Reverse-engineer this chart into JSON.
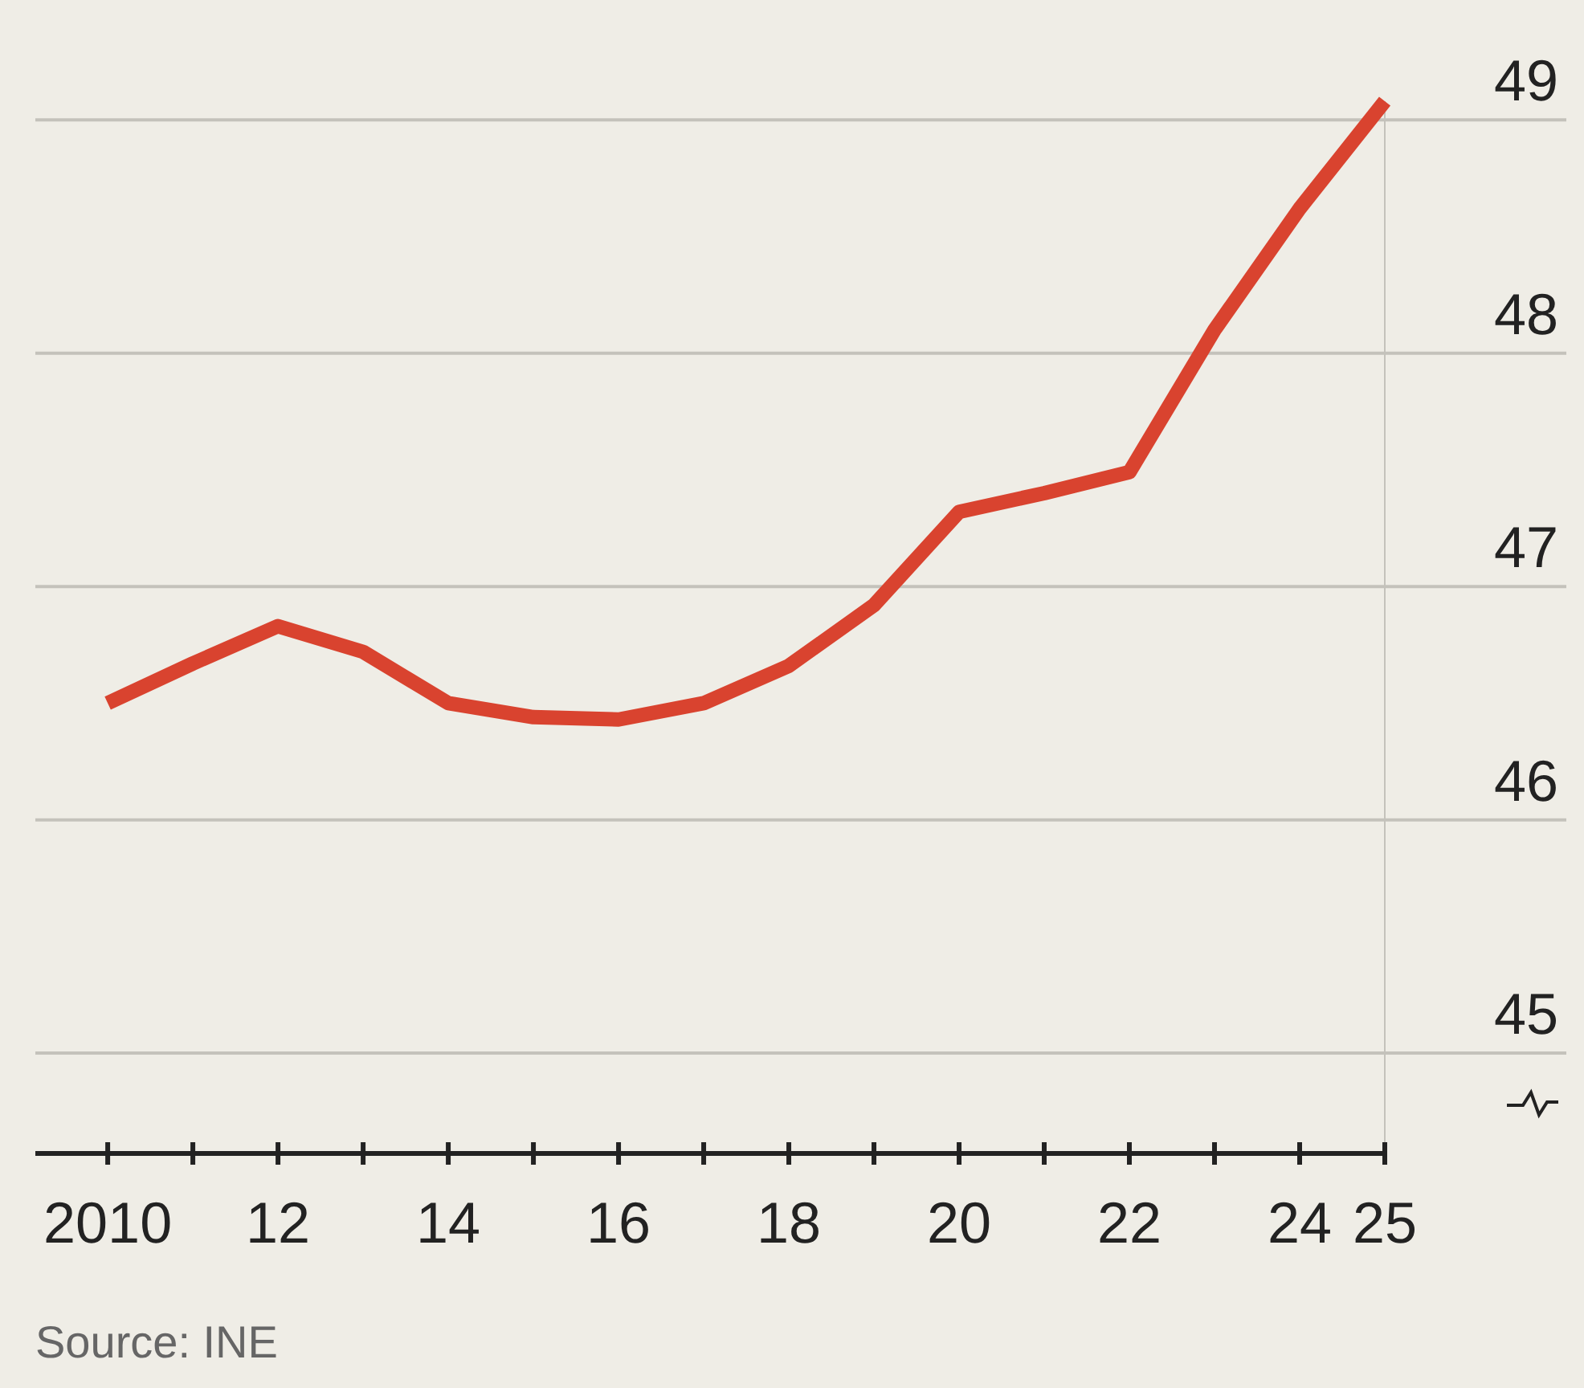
{
  "chart_data": {
    "type": "line",
    "x": [
      2010,
      2011,
      2012,
      2013,
      2014,
      2015,
      2016,
      2017,
      2018,
      2019,
      2020,
      2021,
      2022,
      2023,
      2024,
      2025
    ],
    "series": [
      {
        "color": "#d9432f",
        "values": [
          46.5,
          46.67,
          46.83,
          46.72,
          46.5,
          46.44,
          46.43,
          46.5,
          46.66,
          46.92,
          47.32,
          47.4,
          47.49,
          48.1,
          48.62,
          49.08
        ]
      }
    ],
    "xlim": [
      2009.15,
      2025
    ],
    "ylim": [
      44.57,
      49.08
    ],
    "yticks": [
      45,
      46,
      47,
      48,
      49
    ],
    "xticks": [
      {
        "value": 2010,
        "label": "2010"
      },
      {
        "value": 2011,
        "label": null
      },
      {
        "value": 2012,
        "label": "12"
      },
      {
        "value": 2013,
        "label": null
      },
      {
        "value": 2014,
        "label": "14"
      },
      {
        "value": 2015,
        "label": null
      },
      {
        "value": 2016,
        "label": "16"
      },
      {
        "value": 2017,
        "label": null
      },
      {
        "value": 2018,
        "label": "18"
      },
      {
        "value": 2019,
        "label": null
      },
      {
        "value": 2020,
        "label": "20"
      },
      {
        "value": 2021,
        "label": null
      },
      {
        "value": 2022,
        "label": "22"
      },
      {
        "value": 2023,
        "label": null
      },
      {
        "value": 2024,
        "label": "24"
      },
      {
        "value": 2025,
        "label": "25"
      }
    ],
    "grid": "y",
    "marker": "none",
    "line_style": "solid",
    "annotations": [
      "Source: INE"
    ]
  }
}
